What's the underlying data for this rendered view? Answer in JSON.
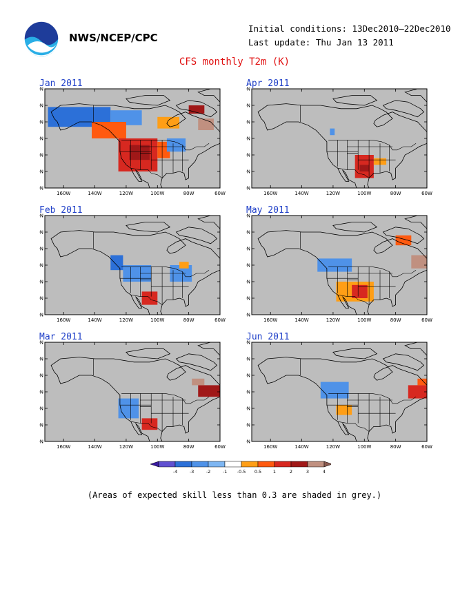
{
  "header": {
    "agency": "NWS/NCEP/CPC",
    "initial_conditions": "Initial conditions: 13Dec2010—22Dec2010",
    "last_update": "Last update: Thu Jan 13 2011",
    "logo_icon": "noaa-logo-icon"
  },
  "title": "CFS monthly T2m (K)",
  "axes": {
    "lat_labels": [
      "80N",
      "70N",
      "60N",
      "50N",
      "40N",
      "30N",
      "20N"
    ],
    "lon_labels": [
      "160W",
      "140W",
      "120W",
      "100W",
      "80W",
      "60W"
    ],
    "lat_values": [
      80,
      70,
      60,
      50,
      40,
      30,
      20
    ],
    "lon_values": [
      -160,
      -140,
      -120,
      -100,
      -80,
      -60
    ]
  },
  "panels": [
    {
      "title": "Jan 2011",
      "anomalies": [
        {
          "lon": [
            -170,
            -130
          ],
          "lat": [
            57,
            69
          ],
          "value": -2.5
        },
        {
          "lon": [
            -130,
            -110
          ],
          "lat": [
            58,
            67
          ],
          "value": -1.5
        },
        {
          "lon": [
            -142,
            -120
          ],
          "lat": [
            50,
            60
          ],
          "value": 1.5
        },
        {
          "lon": [
            -125,
            -100
          ],
          "lat": [
            30,
            50
          ],
          "value": 2.5
        },
        {
          "lon": [
            -118,
            -105
          ],
          "lat": [
            37,
            46
          ],
          "value": 3.5
        },
        {
          "lon": [
            -100,
            -92
          ],
          "lat": [
            38,
            48
          ],
          "value": 1.5
        },
        {
          "lon": [
            -94,
            -82
          ],
          "lat": [
            42,
            50
          ],
          "value": -1.5
        },
        {
          "lon": [
            -100,
            -86
          ],
          "lat": [
            56,
            63
          ],
          "value": 0.7
        },
        {
          "lon": [
            -80,
            -70
          ],
          "lat": [
            65,
            70
          ],
          "value": 3.5
        },
        {
          "lon": [
            -74,
            -64
          ],
          "lat": [
            55,
            62
          ],
          "value": 4.5
        }
      ]
    },
    {
      "title": "Apr 2011",
      "anomalies": [
        {
          "lon": [
            -106,
            -94
          ],
          "lat": [
            26,
            40
          ],
          "value": 2.5
        },
        {
          "lon": [
            -103,
            -97
          ],
          "lat": [
            30,
            34
          ],
          "value": 3.5
        },
        {
          "lon": [
            -94,
            -86
          ],
          "lat": [
            34,
            38
          ],
          "value": 0.7
        },
        {
          "lon": [
            -122,
            -119
          ],
          "lat": [
            52,
            56
          ],
          "value": -1.5
        }
      ]
    },
    {
      "title": "Feb 2011",
      "anomalies": [
        {
          "lon": [
            -122,
            -104
          ],
          "lat": [
            40,
            50
          ],
          "value": -1.5
        },
        {
          "lon": [
            -130,
            -122
          ],
          "lat": [
            47,
            56
          ],
          "value": -2.5
        },
        {
          "lon": [
            -92,
            -78
          ],
          "lat": [
            40,
            50
          ],
          "value": -1.5
        },
        {
          "lon": [
            -110,
            -100
          ],
          "lat": [
            26,
            34
          ],
          "value": 2.5
        },
        {
          "lon": [
            -86,
            -80
          ],
          "lat": [
            48,
            52
          ],
          "value": 0.7
        }
      ]
    },
    {
      "title": "May 2011",
      "anomalies": [
        {
          "lon": [
            -118,
            -94
          ],
          "lat": [
            28,
            40
          ],
          "value": 0.7
        },
        {
          "lon": [
            -108,
            -98
          ],
          "lat": [
            30,
            38
          ],
          "value": 2.5
        },
        {
          "lon": [
            -130,
            -108
          ],
          "lat": [
            46,
            54
          ],
          "value": -1.5
        },
        {
          "lon": [
            -70,
            -60
          ],
          "lat": [
            48,
            56
          ],
          "value": 4.5
        },
        {
          "lon": [
            -80,
            -70
          ],
          "lat": [
            62,
            68
          ],
          "value": 1.5
        }
      ]
    },
    {
      "title": "Mar 2011",
      "anomalies": [
        {
          "lon": [
            -125,
            -112
          ],
          "lat": [
            34,
            46
          ],
          "value": -1.5
        },
        {
          "lon": [
            -110,
            -100
          ],
          "lat": [
            27,
            34
          ],
          "value": 2.5
        },
        {
          "lon": [
            -74,
            -60
          ],
          "lat": [
            47,
            54
          ],
          "value": 3.5
        },
        {
          "lon": [
            -78,
            -70
          ],
          "lat": [
            54,
            58
          ],
          "value": 4.5
        }
      ]
    },
    {
      "title": "Jun 2011",
      "anomalies": [
        {
          "lon": [
            -128,
            -110
          ],
          "lat": [
            46,
            56
          ],
          "value": -1.5
        },
        {
          "lon": [
            -118,
            -108
          ],
          "lat": [
            36,
            42
          ],
          "value": 0.7
        },
        {
          "lon": [
            -72,
            -60
          ],
          "lat": [
            46,
            54
          ],
          "value": 2.5
        },
        {
          "lon": [
            -66,
            -60
          ],
          "lat": [
            54,
            58
          ],
          "value": 1.5
        }
      ]
    }
  ],
  "colorbar": {
    "labels": [
      "-4",
      "-3",
      "-2",
      "-1",
      "-0.5",
      "0.5",
      "1",
      "2",
      "3",
      "4"
    ],
    "colors": [
      "#6050d0",
      "#2c70d8",
      "#4f92e8",
      "#7eb6f2",
      "#ffffff",
      "#ff9e16",
      "#ff5a10",
      "#d72820",
      "#a01818",
      "#c09080"
    ]
  },
  "footnote": "(Areas of expected skill less than 0.3 are shaded in grey.)",
  "style": {
    "grey": "#bdbdbd",
    "title_color": "#e01010",
    "panel_title_color": "#2040c8"
  }
}
